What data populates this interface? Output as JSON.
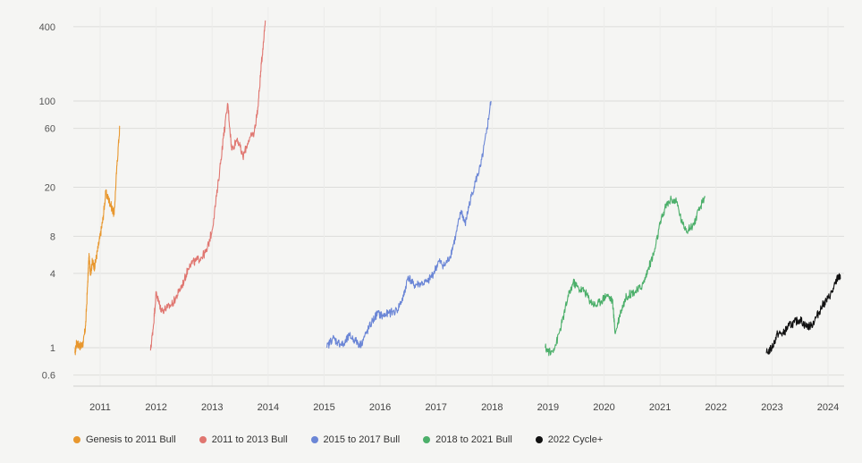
{
  "chart_data": {
    "type": "line",
    "y_scale": "log",
    "ylim": [
      0.5,
      500
    ],
    "xlim": [
      2010.55,
      2024.25
    ],
    "grid": true,
    "legend_position": "bottom-left",
    "y_ticks": [
      {
        "value": 400,
        "label": "400"
      },
      {
        "value": 100,
        "label": "100"
      },
      {
        "value": 60,
        "label": "60"
      },
      {
        "value": 20,
        "label": "20"
      },
      {
        "value": 8,
        "label": "8"
      },
      {
        "value": 4,
        "label": "4"
      },
      {
        "value": 1,
        "label": "1"
      },
      {
        "value": 0.6,
        "label": "0.6"
      }
    ],
    "x_ticks": [
      {
        "value": 2011,
        "label": "2011"
      },
      {
        "value": 2012,
        "label": "2012"
      },
      {
        "value": 2013,
        "label": "2013"
      },
      {
        "value": 2014,
        "label": "2014"
      },
      {
        "value": 2015,
        "label": "2015"
      },
      {
        "value": 2016,
        "label": "2016"
      },
      {
        "value": 2017,
        "label": "2017"
      },
      {
        "value": 2018,
        "label": "2018"
      },
      {
        "value": 2019,
        "label": "2019"
      },
      {
        "value": 2020,
        "label": "2020"
      },
      {
        "value": 2021,
        "label": "2021"
      },
      {
        "value": 2022,
        "label": "2022"
      },
      {
        "value": 2023,
        "label": "2023"
      },
      {
        "value": 2024,
        "label": "2024"
      }
    ],
    "series": [
      {
        "name": "Genesis to 2011 Bull",
        "color": "#e8972e",
        "points": [
          [
            2010.55,
            0.9
          ],
          [
            2010.58,
            1.1
          ],
          [
            2010.62,
            1.05
          ],
          [
            2010.66,
            1.02
          ],
          [
            2010.7,
            1.1
          ],
          [
            2010.74,
            1.5
          ],
          [
            2010.78,
            3.5
          ],
          [
            2010.8,
            5.5
          ],
          [
            2010.83,
            4.0
          ],
          [
            2010.86,
            5.0
          ],
          [
            2010.9,
            4.5
          ],
          [
            2010.95,
            6.0
          ],
          [
            2011.0,
            8.0
          ],
          [
            2011.05,
            11.0
          ],
          [
            2011.1,
            18.0
          ],
          [
            2011.15,
            16.0
          ],
          [
            2011.2,
            14.0
          ],
          [
            2011.25,
            12.0
          ],
          [
            2011.3,
            30.0
          ],
          [
            2011.35,
            62.0
          ]
        ]
      },
      {
        "name": "2011 to 2013 Bull",
        "color": "#e07670",
        "points": [
          [
            2011.9,
            0.95
          ],
          [
            2011.95,
            1.5
          ],
          [
            2012.0,
            2.8
          ],
          [
            2012.05,
            2.3
          ],
          [
            2012.1,
            2.0
          ],
          [
            2012.2,
            2.1
          ],
          [
            2012.3,
            2.3
          ],
          [
            2012.4,
            2.8
          ],
          [
            2012.5,
            3.5
          ],
          [
            2012.6,
            4.8
          ],
          [
            2012.7,
            5.0
          ],
          [
            2012.8,
            5.4
          ],
          [
            2012.9,
            6.0
          ],
          [
            2013.0,
            9.0
          ],
          [
            2013.1,
            20.0
          ],
          [
            2013.2,
            50.0
          ],
          [
            2013.28,
            95.0
          ],
          [
            2013.35,
            40.0
          ],
          [
            2013.45,
            50.0
          ],
          [
            2013.55,
            35.0
          ],
          [
            2013.65,
            48.0
          ],
          [
            2013.75,
            55.0
          ],
          [
            2013.82,
            90.0
          ],
          [
            2013.88,
            200.0
          ],
          [
            2013.95,
            450.0
          ]
        ]
      },
      {
        "name": "2015 to 2017 Bull",
        "color": "#6b86d6",
        "points": [
          [
            2015.05,
            1.0
          ],
          [
            2015.15,
            1.2
          ],
          [
            2015.25,
            1.1
          ],
          [
            2015.35,
            1.05
          ],
          [
            2015.45,
            1.25
          ],
          [
            2015.55,
            1.15
          ],
          [
            2015.65,
            1.05
          ],
          [
            2015.75,
            1.3
          ],
          [
            2015.85,
            1.6
          ],
          [
            2015.95,
            1.9
          ],
          [
            2016.05,
            1.8
          ],
          [
            2016.15,
            1.9
          ],
          [
            2016.3,
            2.0
          ],
          [
            2016.42,
            2.6
          ],
          [
            2016.5,
            3.8
          ],
          [
            2016.6,
            3.2
          ],
          [
            2016.7,
            3.3
          ],
          [
            2016.85,
            3.4
          ],
          [
            2016.95,
            4.0
          ],
          [
            2017.05,
            5.0
          ],
          [
            2017.15,
            4.6
          ],
          [
            2017.25,
            5.5
          ],
          [
            2017.35,
            8.0
          ],
          [
            2017.45,
            13.0
          ],
          [
            2017.52,
            10.0
          ],
          [
            2017.6,
            15.0
          ],
          [
            2017.7,
            22.0
          ],
          [
            2017.8,
            30.0
          ],
          [
            2017.9,
            55.0
          ],
          [
            2017.98,
            100.0
          ]
        ]
      },
      {
        "name": "2018 to 2021 Bull",
        "color": "#4caf6a",
        "points": [
          [
            2018.95,
            1.0
          ],
          [
            2019.05,
            0.9
          ],
          [
            2019.15,
            1.1
          ],
          [
            2019.25,
            1.6
          ],
          [
            2019.35,
            2.5
          ],
          [
            2019.45,
            3.4
          ],
          [
            2019.55,
            3.0
          ],
          [
            2019.65,
            2.9
          ],
          [
            2019.75,
            2.4
          ],
          [
            2019.85,
            2.2
          ],
          [
            2019.95,
            2.4
          ],
          [
            2020.05,
            2.7
          ],
          [
            2020.15,
            2.4
          ],
          [
            2020.2,
            1.3
          ],
          [
            2020.3,
            2.0
          ],
          [
            2020.4,
            2.6
          ],
          [
            2020.5,
            2.8
          ],
          [
            2020.6,
            2.9
          ],
          [
            2020.7,
            3.3
          ],
          [
            2020.8,
            4.5
          ],
          [
            2020.9,
            6.0
          ],
          [
            2021.0,
            10.0
          ],
          [
            2021.1,
            14.0
          ],
          [
            2021.2,
            16.0
          ],
          [
            2021.3,
            15.0
          ],
          [
            2021.4,
            10.0
          ],
          [
            2021.5,
            9.0
          ],
          [
            2021.6,
            10.0
          ],
          [
            2021.7,
            13.0
          ],
          [
            2021.8,
            17.0
          ]
        ]
      },
      {
        "name": "2022 Cycle+",
        "color": "#111111",
        "points": [
          [
            2022.9,
            0.9
          ],
          [
            2023.0,
            1.0
          ],
          [
            2023.1,
            1.3
          ],
          [
            2023.2,
            1.3
          ],
          [
            2023.3,
            1.5
          ],
          [
            2023.4,
            1.6
          ],
          [
            2023.5,
            1.7
          ],
          [
            2023.6,
            1.5
          ],
          [
            2023.7,
            1.5
          ],
          [
            2023.8,
            1.8
          ],
          [
            2023.9,
            2.2
          ],
          [
            2024.0,
            2.5
          ],
          [
            2024.1,
            3.0
          ],
          [
            2024.18,
            3.8
          ],
          [
            2024.22,
            3.6
          ]
        ]
      }
    ]
  }
}
